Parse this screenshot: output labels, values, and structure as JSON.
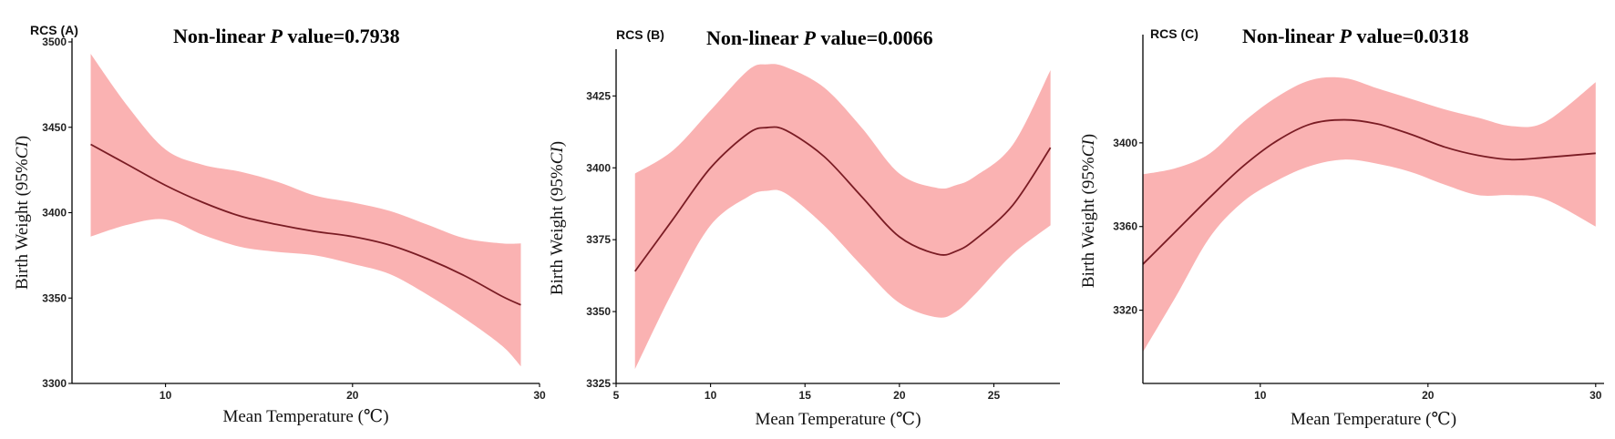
{
  "chart_data": [
    {
      "type": "line",
      "panel_label": "RCS (A)",
      "title_parts": [
        "Non-linear ",
        "P",
        " value=0.7938"
      ],
      "xlabel": "Mean Temperature (℃)",
      "ylabel_parts": [
        "Birth Weight (95%",
        "CI",
        ")"
      ],
      "xlim": [
        5,
        30
      ],
      "ylim": [
        3300,
        3500
      ],
      "xticks": [
        10,
        20,
        30
      ],
      "yticks": [
        3300,
        3350,
        3400,
        3450,
        3500
      ],
      "grid": false,
      "legend": "none",
      "colors": {
        "band": "#f9aaaa",
        "line": "#7a1c24"
      },
      "x": [
        6,
        8,
        10,
        12,
        14,
        16,
        18,
        20,
        22,
        24,
        26,
        28,
        29
      ],
      "y": [
        3440,
        3428,
        3416,
        3406,
        3398,
        3393,
        3389,
        3386,
        3381,
        3373,
        3363,
        3351,
        3346
      ],
      "lower": [
        3386,
        3393,
        3396,
        3387,
        3380,
        3377,
        3375,
        3370,
        3364,
        3352,
        3338,
        3322,
        3310
      ],
      "upper": [
        3493,
        3462,
        3437,
        3428,
        3424,
        3418,
        3410,
        3406,
        3401,
        3393,
        3385,
        3382,
        3382
      ]
    },
    {
      "type": "line",
      "panel_label": "RCS (B)",
      "title_parts": [
        "Non-linear ",
        "P",
        " value=0.0066"
      ],
      "xlabel": "Mean Temperature (℃)",
      "ylabel_parts": [
        "Birth Weight (95%",
        "CI",
        ")"
      ],
      "xlim": [
        5,
        28.5
      ],
      "ylim": [
        3325,
        3440
      ],
      "xticks": [
        5,
        10,
        15,
        20,
        25
      ],
      "yticks": [
        3325,
        3350,
        3375,
        3400,
        3425
      ],
      "grid": false,
      "legend": "none",
      "colors": {
        "band": "#f9aaaa",
        "line": "#7a1c24"
      },
      "x": [
        6,
        8,
        10,
        12,
        13,
        14,
        16,
        18,
        20,
        22,
        23,
        24,
        26,
        28
      ],
      "y": [
        3364,
        3382,
        3400,
        3412,
        3414,
        3413,
        3404,
        3390,
        3376,
        3370,
        3371,
        3375,
        3387,
        3407
      ],
      "lower": [
        3330,
        3357,
        3380,
        3390,
        3392,
        3391,
        3380,
        3366,
        3353,
        3348,
        3350,
        3356,
        3370,
        3380
      ],
      "upper": [
        3398,
        3406,
        3420,
        3434,
        3436,
        3435,
        3428,
        3414,
        3398,
        3393,
        3394,
        3397,
        3408,
        3434
      ]
    },
    {
      "type": "line",
      "panel_label": "RCS (C)",
      "title_parts": [
        "Non-linear ",
        "P",
        " value=0.0318"
      ],
      "xlabel": "Mean Temperature (℃)",
      "ylabel_parts": [
        "Birth Weight (95%",
        "CI",
        ")"
      ],
      "xlim": [
        3,
        30.5
      ],
      "ylim": [
        3285,
        3450
      ],
      "xticks": [
        10,
        20,
        30
      ],
      "yticks": [
        3320,
        3360,
        3400
      ],
      "grid": false,
      "legend": "none",
      "colors": {
        "band": "#f9aaaa",
        "line": "#7a1c24"
      },
      "x": [
        3,
        5,
        7,
        9,
        11,
        13,
        15,
        17,
        19,
        21,
        23,
        25,
        27,
        30
      ],
      "y": [
        3342,
        3358,
        3374,
        3389,
        3401,
        3409,
        3411,
        3409,
        3404,
        3398,
        3394,
        3392,
        3393,
        3395
      ],
      "lower": [
        3300,
        3327,
        3355,
        3372,
        3382,
        3389,
        3392,
        3390,
        3386,
        3380,
        3375,
        3375,
        3373,
        3360
      ],
      "upper": [
        3385,
        3388,
        3395,
        3410,
        3422,
        3430,
        3431,
        3426,
        3421,
        3416,
        3412,
        3408,
        3410,
        3429
      ]
    }
  ]
}
